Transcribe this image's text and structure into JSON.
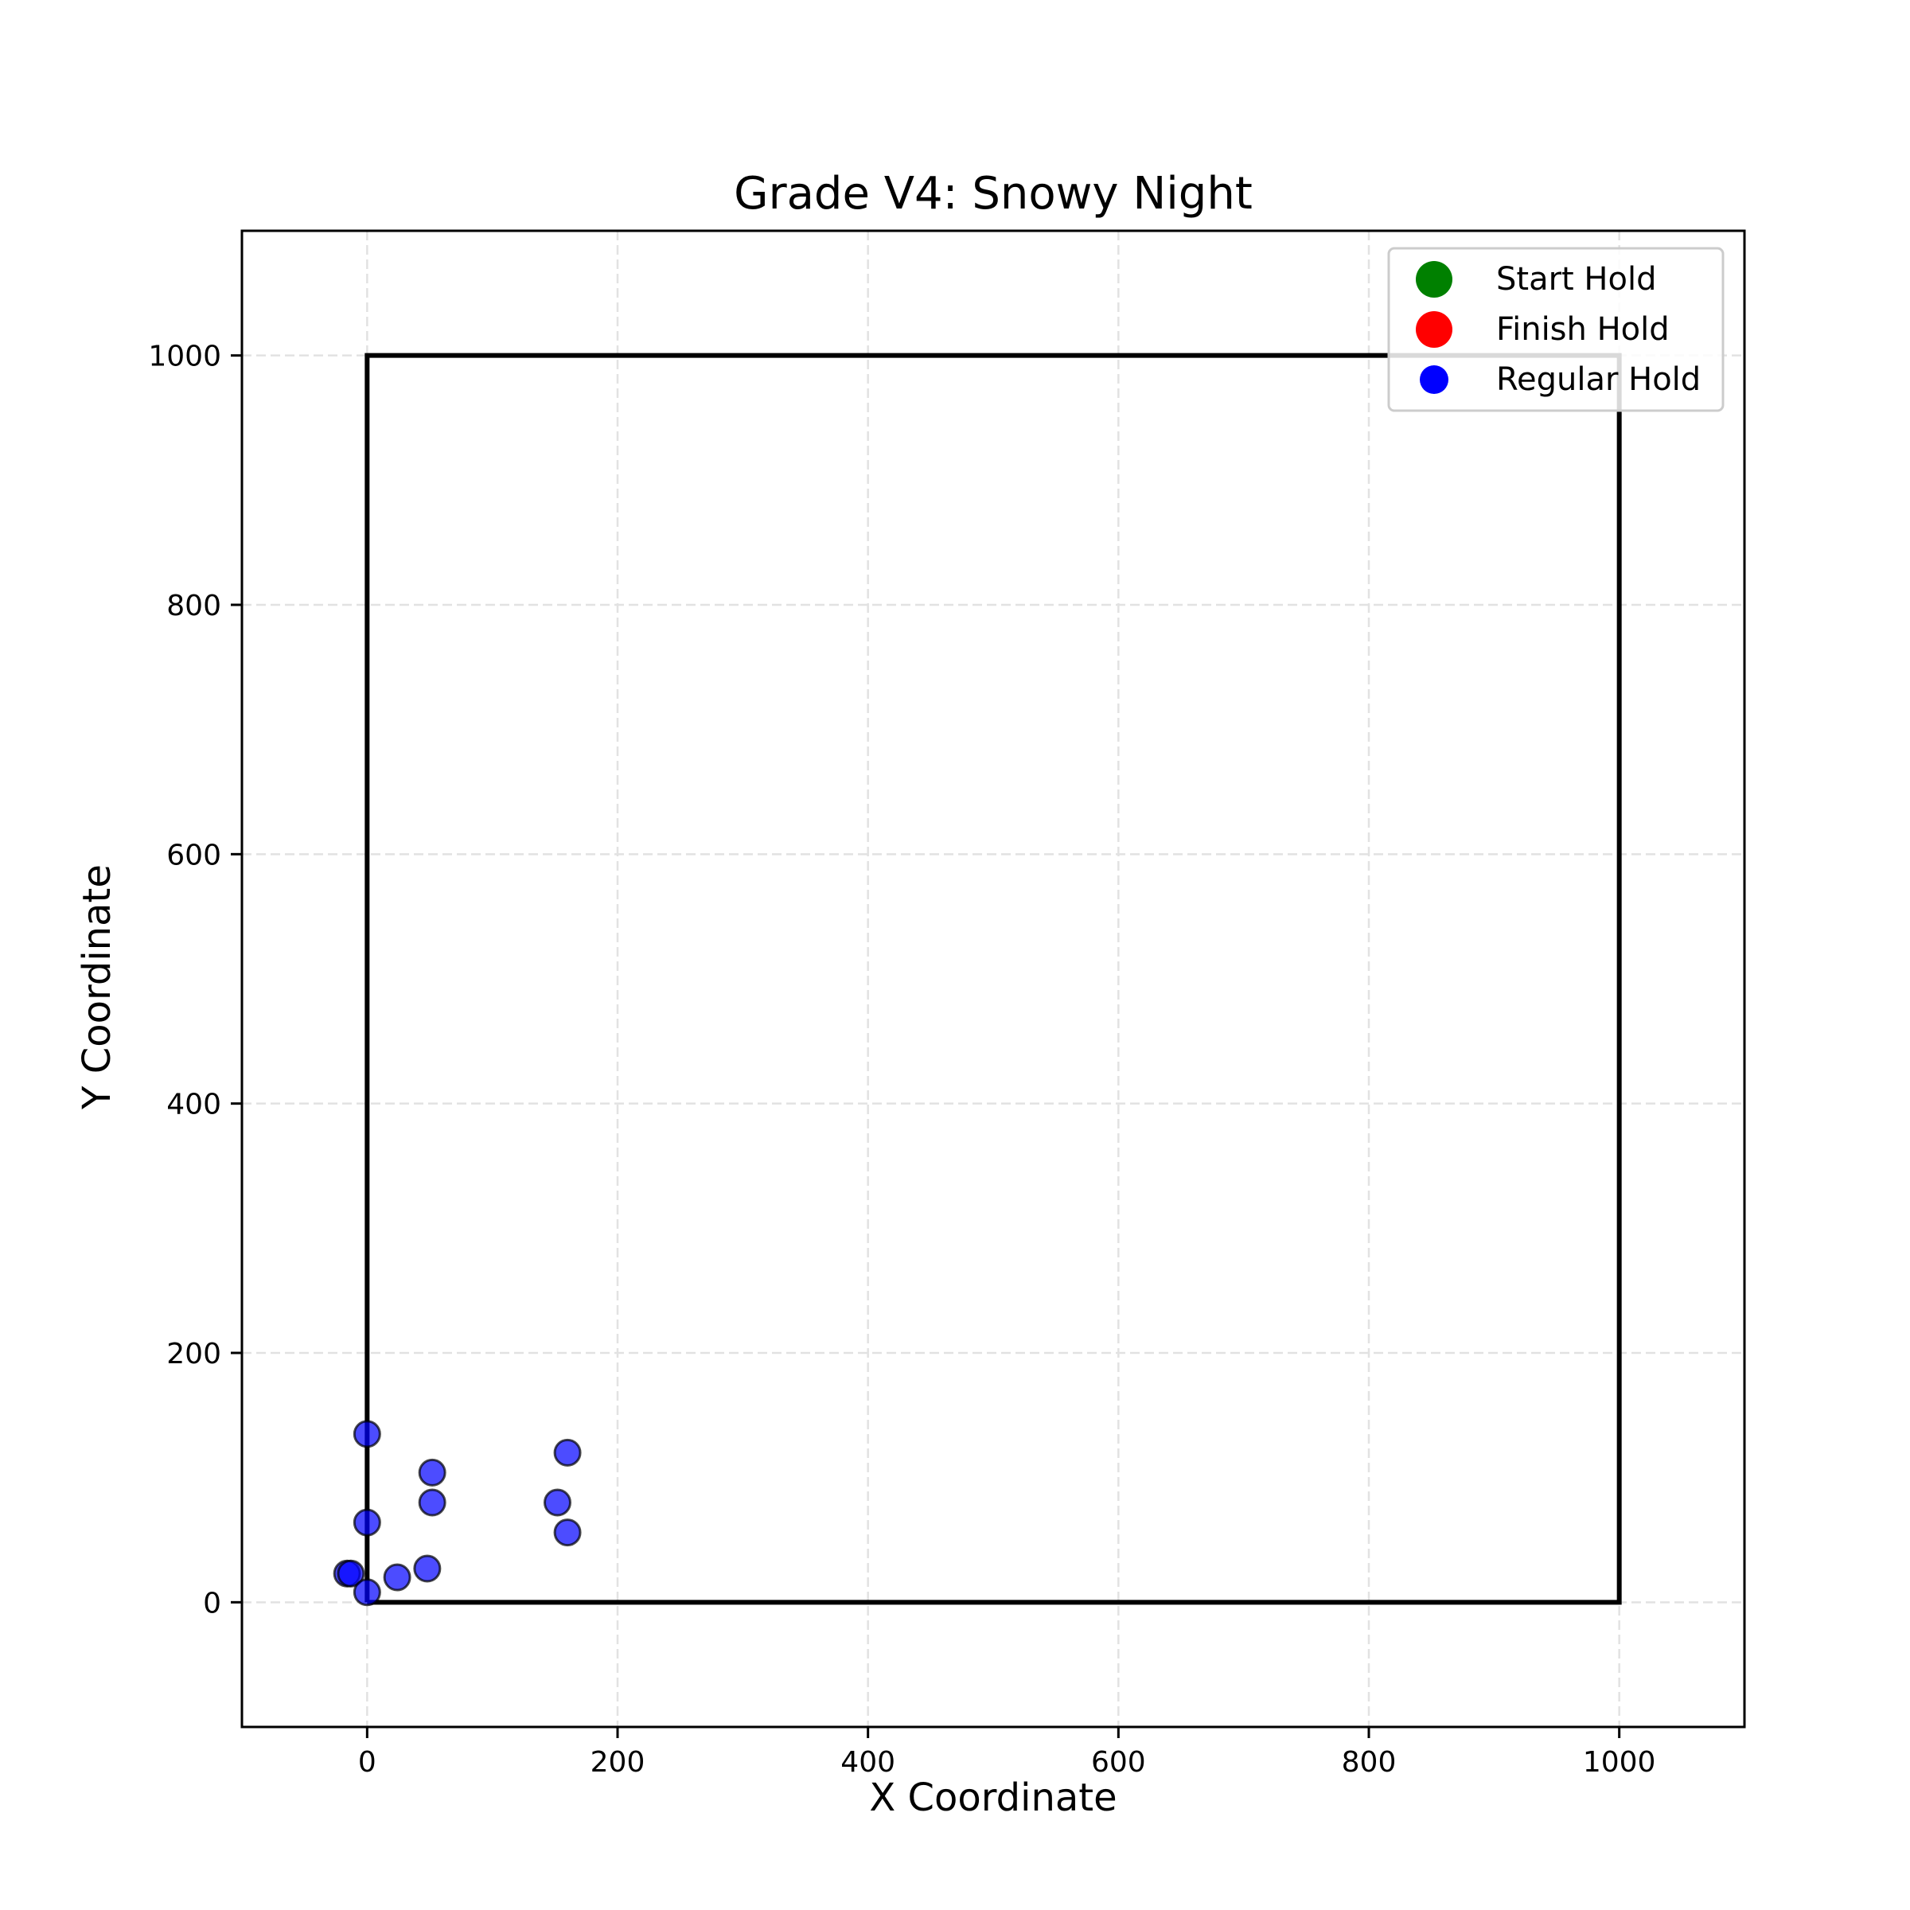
{
  "chart_data": {
    "type": "scatter",
    "title": "Grade V4: Snowy Night",
    "xlabel": "X Coordinate",
    "ylabel": "Y Coordinate",
    "xlim": [
      -100,
      1100
    ],
    "ylim": [
      -100,
      1100
    ],
    "xticks": [
      0,
      200,
      400,
      600,
      800,
      1000
    ],
    "yticks": [
      0,
      200,
      400,
      600,
      800,
      1000
    ],
    "grid": true,
    "legend_position": "top-right",
    "wall_outline": [
      [
        0,
        0
      ],
      [
        1000,
        0
      ],
      [
        1000,
        1000
      ],
      [
        0,
        1000
      ],
      [
        0,
        0
      ]
    ],
    "legend": [
      {
        "label": "Start Hold",
        "color": "#008000"
      },
      {
        "label": "Finish Hold",
        "color": "#ff0000"
      },
      {
        "label": "Regular Hold",
        "color": "#0000ff"
      }
    ],
    "series": [
      {
        "name": "Regular Hold",
        "color": "#0000ff",
        "points": [
          {
            "x": 0,
            "y": 135
          },
          {
            "x": 0,
            "y": 64
          },
          {
            "x": -16,
            "y": 23
          },
          {
            "x": -13,
            "y": 23
          },
          {
            "x": 0,
            "y": 8
          },
          {
            "x": 24,
            "y": 20
          },
          {
            "x": 48,
            "y": 27
          },
          {
            "x": 52,
            "y": 104
          },
          {
            "x": 52,
            "y": 80
          },
          {
            "x": 152,
            "y": 80
          },
          {
            "x": 160,
            "y": 120
          },
          {
            "x": 160,
            "y": 56
          }
        ]
      }
    ]
  }
}
